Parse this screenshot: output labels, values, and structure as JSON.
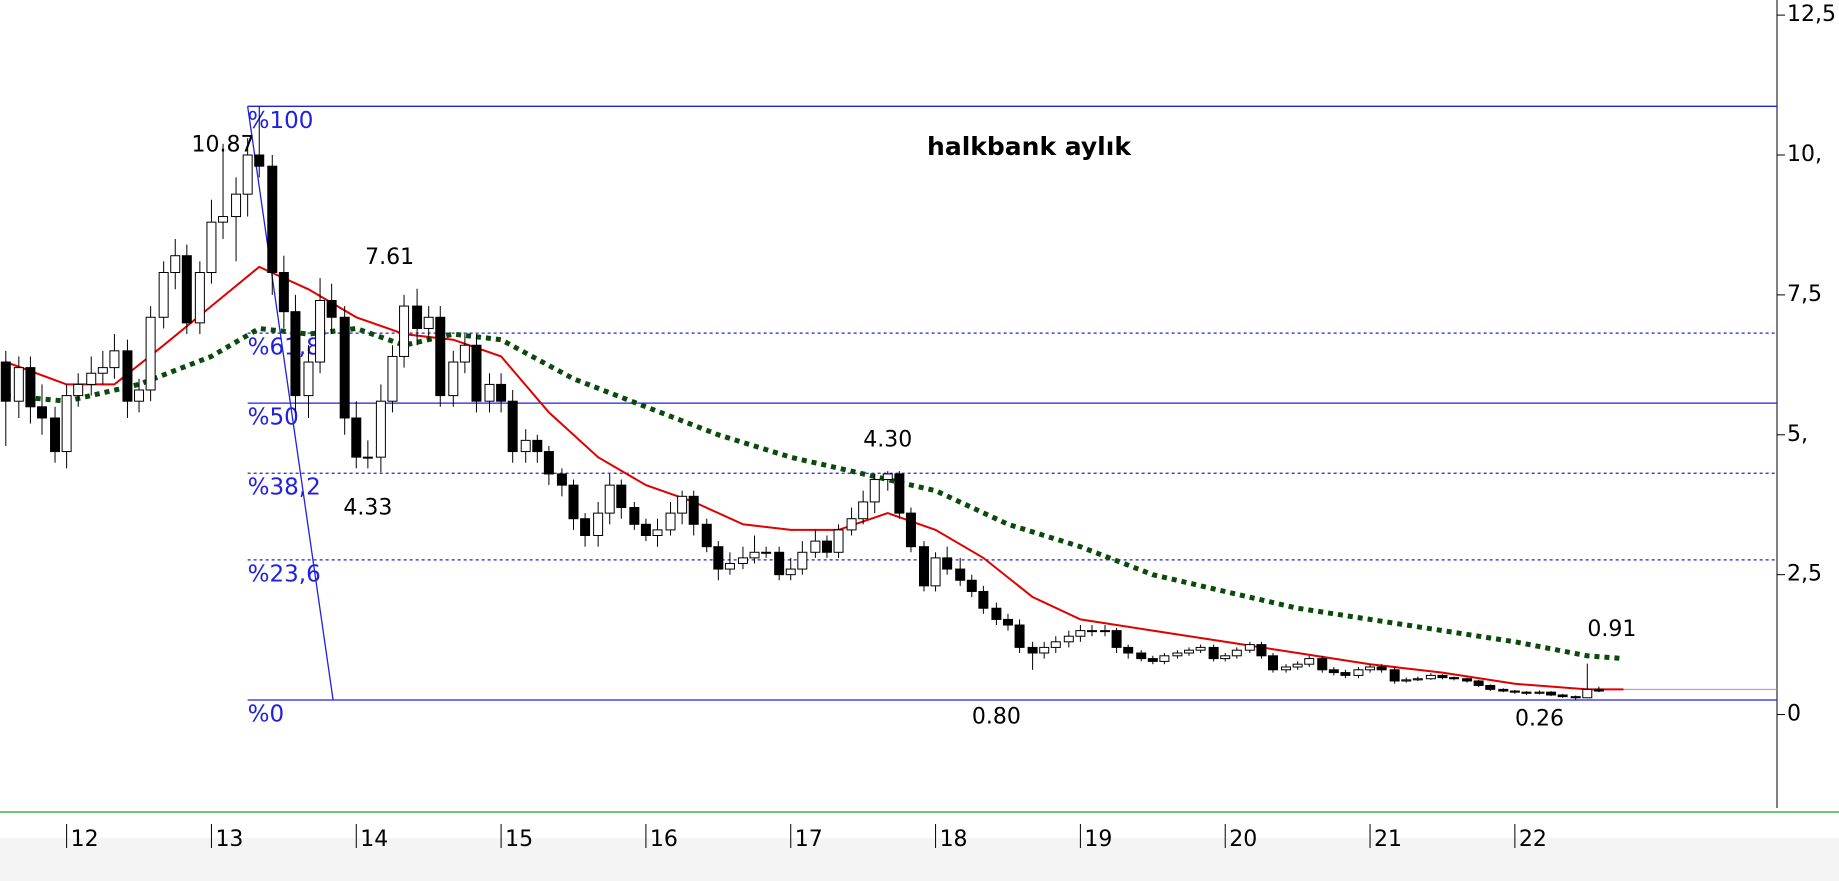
{
  "chart_data": {
    "type": "candlestick",
    "title": "halkbank aylık",
    "xlim": [
      11.54,
      23.81
    ],
    "ylim": [
      -1.67,
      12.77
    ],
    "xticks": [
      12,
      13,
      14,
      15,
      16,
      17,
      18,
      19,
      20,
      21,
      22
    ],
    "yticks": [
      {
        "value": 12.5,
        "label": "12,5"
      },
      {
        "value": 10,
        "label": "10,"
      },
      {
        "value": 7.5,
        "label": "7,5"
      },
      {
        "value": 5,
        "label": "5,"
      },
      {
        "value": 2.5,
        "label": "2,5"
      },
      0
    ],
    "x": [
      11.58,
      11.67,
      11.75,
      11.83,
      11.92,
      12.0,
      12.08,
      12.17,
      12.25,
      12.33,
      12.42,
      12.5,
      12.58,
      12.67,
      12.75,
      12.83,
      12.92,
      13.0,
      13.08,
      13.17,
      13.25,
      13.33,
      13.42,
      13.5,
      13.58,
      13.67,
      13.75,
      13.83,
      13.92,
      14.0,
      14.08,
      14.17,
      14.25,
      14.33,
      14.42,
      14.5,
      14.58,
      14.67,
      14.75,
      14.83,
      14.92,
      15.0,
      15.08,
      15.17,
      15.25,
      15.33,
      15.42,
      15.5,
      15.58,
      15.67,
      15.75,
      15.83,
      15.92,
      16.0,
      16.08,
      16.17,
      16.25,
      16.33,
      16.42,
      16.5,
      16.58,
      16.67,
      16.75,
      16.83,
      16.92,
      17.0,
      17.08,
      17.17,
      17.25,
      17.33,
      17.42,
      17.5,
      17.58,
      17.67,
      17.75,
      17.83,
      17.92,
      18.0,
      18.08,
      18.17,
      18.25,
      18.33,
      18.42,
      18.5,
      18.58,
      18.67,
      18.75,
      18.83,
      18.92,
      19.0,
      19.08,
      19.17,
      19.25,
      19.33,
      19.42,
      19.5,
      19.58,
      19.67,
      19.75,
      19.83,
      19.92,
      20.0,
      20.08,
      20.17,
      20.25,
      20.33,
      20.42,
      20.5,
      20.58,
      20.67,
      20.75,
      20.83,
      20.92,
      21.0,
      21.08,
      21.17,
      21.25,
      21.33,
      21.42,
      21.5,
      21.58,
      21.67,
      21.75,
      21.83,
      21.92,
      22.0,
      22.08,
      22.17,
      22.25,
      22.33,
      22.42,
      22.5,
      22.58
    ],
    "candles": [
      [
        6.3,
        6.5,
        4.8,
        5.6
      ],
      [
        5.6,
        6.4,
        5.3,
        6.2
      ],
      [
        6.2,
        6.4,
        5.2,
        5.5
      ],
      [
        5.5,
        5.9,
        5.0,
        5.3
      ],
      [
        5.3,
        5.5,
        4.5,
        4.7
      ],
      [
        4.7,
        5.9,
        4.4,
        5.7
      ],
      [
        5.7,
        6.1,
        5.5,
        5.9
      ],
      [
        5.9,
        6.4,
        5.7,
        6.1
      ],
      [
        6.1,
        6.5,
        5.9,
        6.2
      ],
      [
        6.2,
        6.8,
        6.0,
        6.5
      ],
      [
        6.5,
        6.7,
        5.3,
        5.6
      ],
      [
        5.6,
        6.0,
        5.4,
        5.8
      ],
      [
        5.8,
        7.3,
        5.6,
        7.1
      ],
      [
        7.1,
        8.1,
        6.9,
        7.9
      ],
      [
        7.9,
        8.5,
        7.6,
        8.2
      ],
      [
        8.2,
        8.4,
        6.8,
        7.0
      ],
      [
        7.0,
        8.1,
        6.8,
        7.9
      ],
      [
        7.9,
        9.2,
        7.7,
        8.8
      ],
      [
        8.8,
        10.2,
        8.5,
        8.9
      ],
      [
        8.9,
        9.6,
        8.1,
        9.3
      ],
      [
        9.3,
        10.3,
        8.9,
        10.0
      ],
      [
        10.0,
        10.87,
        9.6,
        9.8
      ],
      [
        9.8,
        10.0,
        7.5,
        7.9
      ],
      [
        7.9,
        8.2,
        6.9,
        7.2
      ],
      [
        7.2,
        7.5,
        5.4,
        5.7
      ],
      [
        5.7,
        6.6,
        5.3,
        6.3
      ],
      [
        6.3,
        7.8,
        6.1,
        7.4
      ],
      [
        7.4,
        7.7,
        6.8,
        7.1
      ],
      [
        7.1,
        7.3,
        5.0,
        5.3
      ],
      [
        5.3,
        5.6,
        4.4,
        4.6
      ],
      [
        4.6,
        4.9,
        4.4,
        4.6
      ],
      [
        4.6,
        5.9,
        4.33,
        5.6
      ],
      [
        5.6,
        6.6,
        5.4,
        6.4
      ],
      [
        6.4,
        7.5,
        6.2,
        7.3
      ],
      [
        7.3,
        7.61,
        6.6,
        6.9
      ],
      [
        6.9,
        7.3,
        6.7,
        7.1
      ],
      [
        7.1,
        7.3,
        5.5,
        5.7
      ],
      [
        5.7,
        6.5,
        5.5,
        6.3
      ],
      [
        6.3,
        6.8,
        6.1,
        6.6
      ],
      [
        6.6,
        6.8,
        5.4,
        5.6
      ],
      [
        5.6,
        6.1,
        5.4,
        5.9
      ],
      [
        5.9,
        6.1,
        5.4,
        5.6
      ],
      [
        5.6,
        5.8,
        4.5,
        4.7
      ],
      [
        4.7,
        5.1,
        4.5,
        4.9
      ],
      [
        4.9,
        5.0,
        4.5,
        4.7
      ],
      [
        4.7,
        4.8,
        4.1,
        4.3
      ],
      [
        4.3,
        4.4,
        3.9,
        4.1
      ],
      [
        4.1,
        4.2,
        3.3,
        3.5
      ],
      [
        3.5,
        3.6,
        3.0,
        3.2
      ],
      [
        3.2,
        3.8,
        3.0,
        3.6
      ],
      [
        3.6,
        4.3,
        3.4,
        4.1
      ],
      [
        4.1,
        4.2,
        3.5,
        3.7
      ],
      [
        3.7,
        3.8,
        3.3,
        3.4
      ],
      [
        3.4,
        3.5,
        3.1,
        3.2
      ],
      [
        3.2,
        3.5,
        3.0,
        3.3
      ],
      [
        3.3,
        3.8,
        3.2,
        3.6
      ],
      [
        3.6,
        4.0,
        3.4,
        3.9
      ],
      [
        3.9,
        4.0,
        3.2,
        3.4
      ],
      [
        3.4,
        3.5,
        2.9,
        3.0
      ],
      [
        3.0,
        3.1,
        2.4,
        2.6
      ],
      [
        2.6,
        2.9,
        2.5,
        2.7
      ],
      [
        2.7,
        3.0,
        2.6,
        2.8
      ],
      [
        2.8,
        3.2,
        2.7,
        2.9
      ],
      [
        2.9,
        3.0,
        2.8,
        2.9
      ],
      [
        2.9,
        3.0,
        2.4,
        2.5
      ],
      [
        2.5,
        2.8,
        2.4,
        2.6
      ],
      [
        2.6,
        3.1,
        2.5,
        2.9
      ],
      [
        2.9,
        3.3,
        2.8,
        3.1
      ],
      [
        3.1,
        3.2,
        2.8,
        2.9
      ],
      [
        2.9,
        3.4,
        2.8,
        3.3
      ],
      [
        3.3,
        3.7,
        3.2,
        3.5
      ],
      [
        3.5,
        4.0,
        3.4,
        3.8
      ],
      [
        3.8,
        4.3,
        3.6,
        4.2
      ],
      [
        4.2,
        4.35,
        4.0,
        4.3
      ],
      [
        4.3,
        4.35,
        3.5,
        3.6
      ],
      [
        3.6,
        3.7,
        2.9,
        3.0
      ],
      [
        3.0,
        3.1,
        2.2,
        2.3
      ],
      [
        2.3,
        2.9,
        2.2,
        2.8
      ],
      [
        2.8,
        3.0,
        2.5,
        2.6
      ],
      [
        2.6,
        2.8,
        2.3,
        2.4
      ],
      [
        2.4,
        2.5,
        2.1,
        2.2
      ],
      [
        2.2,
        2.3,
        1.8,
        1.9
      ],
      [
        1.9,
        2.0,
        1.6,
        1.7
      ],
      [
        1.7,
        1.8,
        1.5,
        1.6
      ],
      [
        1.6,
        1.7,
        1.1,
        1.2
      ],
      [
        1.2,
        1.3,
        0.8,
        1.1
      ],
      [
        1.1,
        1.3,
        1.0,
        1.2
      ],
      [
        1.2,
        1.4,
        1.1,
        1.3
      ],
      [
        1.3,
        1.5,
        1.2,
        1.4
      ],
      [
        1.4,
        1.6,
        1.3,
        1.5
      ],
      [
        1.5,
        1.6,
        1.4,
        1.5
      ],
      [
        1.5,
        1.6,
        1.4,
        1.5
      ],
      [
        1.5,
        1.55,
        1.1,
        1.2
      ],
      [
        1.2,
        1.25,
        1.0,
        1.1
      ],
      [
        1.1,
        1.15,
        0.95,
        1.0
      ],
      [
        1.0,
        1.05,
        0.9,
        0.95
      ],
      [
        0.95,
        1.1,
        0.9,
        1.05
      ],
      [
        1.05,
        1.15,
        1.0,
        1.1
      ],
      [
        1.1,
        1.2,
        1.05,
        1.15
      ],
      [
        1.15,
        1.25,
        1.1,
        1.2
      ],
      [
        1.2,
        1.25,
        0.95,
        1.0
      ],
      [
        1.0,
        1.1,
        0.95,
        1.05
      ],
      [
        1.05,
        1.2,
        1.0,
        1.15
      ],
      [
        1.15,
        1.3,
        1.1,
        1.25
      ],
      [
        1.25,
        1.3,
        1.0,
        1.05
      ],
      [
        1.05,
        1.1,
        0.75,
        0.8
      ],
      [
        0.8,
        0.9,
        0.75,
        0.85
      ],
      [
        0.85,
        0.95,
        0.8,
        0.9
      ],
      [
        0.9,
        1.05,
        0.85,
        1.0
      ],
      [
        1.0,
        1.05,
        0.75,
        0.8
      ],
      [
        0.8,
        0.85,
        0.7,
        0.75
      ],
      [
        0.75,
        0.8,
        0.65,
        0.7
      ],
      [
        0.7,
        0.85,
        0.65,
        0.8
      ],
      [
        0.8,
        0.9,
        0.75,
        0.85
      ],
      [
        0.85,
        0.9,
        0.75,
        0.8
      ],
      [
        0.8,
        0.85,
        0.55,
        0.6
      ],
      [
        0.6,
        0.66,
        0.57,
        0.62
      ],
      [
        0.62,
        0.68,
        0.6,
        0.64
      ],
      [
        0.64,
        0.74,
        0.62,
        0.7
      ],
      [
        0.7,
        0.72,
        0.63,
        0.66
      ],
      [
        0.66,
        0.68,
        0.61,
        0.64
      ],
      [
        0.64,
        0.66,
        0.57,
        0.6
      ],
      [
        0.6,
        0.62,
        0.49,
        0.52
      ],
      [
        0.52,
        0.54,
        0.42,
        0.45
      ],
      [
        0.45,
        0.47,
        0.4,
        0.42
      ],
      [
        0.42,
        0.44,
        0.37,
        0.4
      ],
      [
        0.4,
        0.42,
        0.35,
        0.38
      ],
      [
        0.38,
        0.43,
        0.36,
        0.4
      ],
      [
        0.4,
        0.42,
        0.33,
        0.35
      ],
      [
        0.35,
        0.37,
        0.3,
        0.32
      ],
      [
        0.32,
        0.34,
        0.26,
        0.3
      ],
      [
        0.3,
        0.91,
        0.29,
        0.45
      ],
      [
        0.45,
        0.5,
        0.4,
        0.42
      ]
    ],
    "series": [
      {
        "name": "ma-red",
        "color": "#e00000",
        "dash": "solid",
        "x": [
          11.58,
          12.0,
          12.33,
          12.67,
          13.0,
          13.33,
          13.67,
          14.0,
          14.33,
          14.67,
          15.0,
          15.33,
          15.67,
          16.0,
          16.33,
          16.67,
          17.0,
          17.33,
          17.67,
          18.0,
          18.33,
          18.67,
          19.0,
          19.5,
          20.0,
          20.5,
          21.0,
          21.5,
          22.0,
          22.5,
          22.75
        ],
        "values": [
          6.3,
          5.9,
          5.9,
          6.6,
          7.3,
          8.0,
          7.6,
          7.1,
          6.8,
          6.7,
          6.4,
          5.4,
          4.6,
          4.1,
          3.8,
          3.4,
          3.3,
          3.3,
          3.6,
          3.3,
          2.8,
          2.1,
          1.7,
          1.5,
          1.3,
          1.1,
          0.9,
          0.75,
          0.55,
          0.45,
          0.45
        ]
      },
      {
        "name": "ma-green",
        "color": "#0a4a0a",
        "dash": "dotted",
        "x": [
          11.58,
          12.0,
          12.5,
          13.0,
          13.33,
          13.67,
          14.0,
          14.33,
          14.67,
          15.0,
          15.5,
          16.0,
          16.5,
          17.0,
          17.5,
          18.0,
          18.5,
          19.0,
          19.5,
          20.0,
          20.5,
          21.0,
          21.5,
          22.0,
          22.5,
          22.75
        ],
        "values": [
          5.7,
          5.6,
          5.9,
          6.4,
          6.9,
          6.8,
          6.9,
          6.6,
          6.8,
          6.7,
          6.0,
          5.5,
          5.0,
          4.6,
          4.3,
          4.0,
          3.4,
          3.0,
          2.5,
          2.2,
          1.9,
          1.7,
          1.5,
          1.3,
          1.05,
          1.0
        ]
      }
    ],
    "last_price": 0.45,
    "fib_levels": [
      {
        "label": "%100",
        "value": 10.87,
        "style": "solid"
      },
      {
        "label": "%61,8",
        "value": 6.817,
        "style": "dotted"
      },
      {
        "label": "%50",
        "value": 5.565,
        "style": "solid"
      },
      {
        "label": "%38,2",
        "value": 4.313,
        "style": "dotted"
      },
      {
        "label": "%23,6",
        "value": 2.764,
        "style": "dotted"
      },
      {
        "label": "%0",
        "value": 0.26,
        "style": "solid"
      }
    ],
    "fib_color": "#2020e0",
    "annotations": [
      {
        "label": "10.87",
        "value": 10.87
      },
      {
        "label": "7.61",
        "value": 7.61
      },
      {
        "label": "4.33",
        "value": 4.33
      },
      {
        "label": "4.30",
        "value": 4.3
      },
      {
        "label": "0.80",
        "value": 0.8
      },
      {
        "label": "0.91",
        "value": 0.91
      },
      {
        "label": "0.26",
        "value": 0.26
      }
    ]
  }
}
